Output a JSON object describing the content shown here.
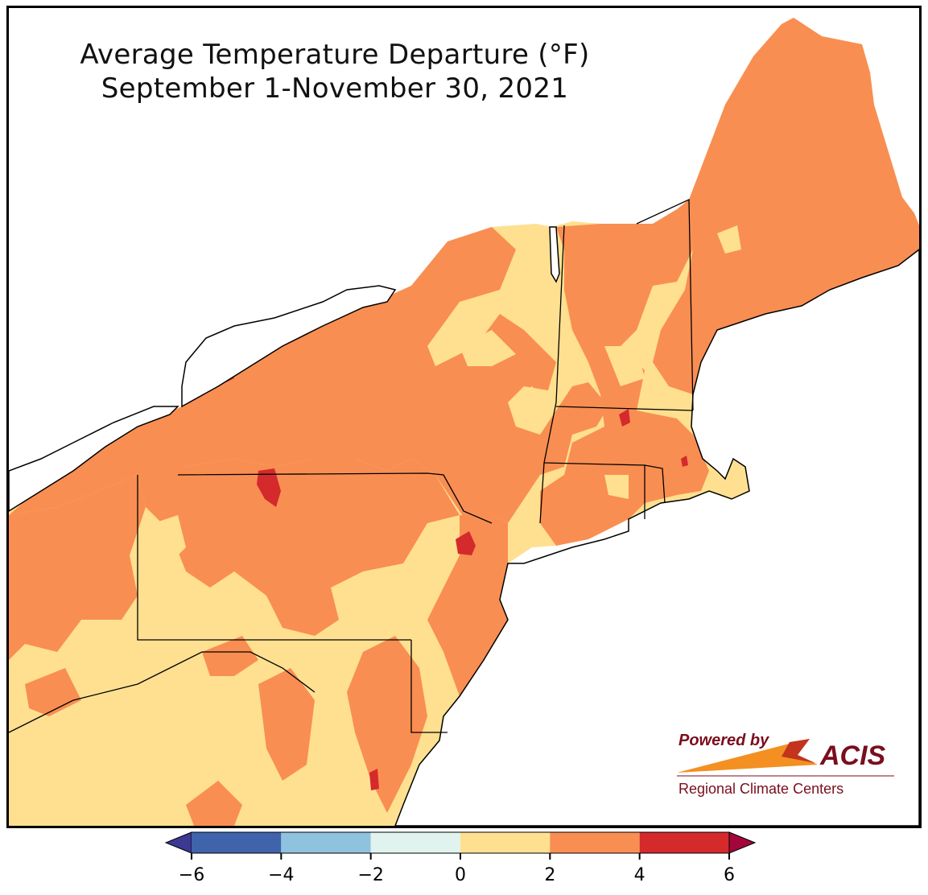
{
  "title": {
    "line1": "Average Temperature Departure (°F)",
    "line2": "September 1-November 30, 2021"
  },
  "logo": {
    "powered_by": "Powered by",
    "brand": "ACIS",
    "subtitle": "Regional Climate Centers"
  },
  "legend": {
    "bins": [
      {
        "from": -6,
        "to": -4,
        "color": "#4064ac"
      },
      {
        "from": -4,
        "to": -2,
        "color": "#8fc2de"
      },
      {
        "from": -2,
        "to": 0,
        "color": "#e1f3ee"
      },
      {
        "from": 0,
        "to": 2,
        "color": "#fee090"
      },
      {
        "from": 2,
        "to": 4,
        "color": "#f98e52"
      },
      {
        "from": 4,
        "to": 6,
        "color": "#d42a2b"
      }
    ],
    "under_color": "#3c3995",
    "over_color": "#a3063c",
    "ticks": [
      "−6",
      "−4",
      "−2",
      "0",
      "2",
      "4",
      "6"
    ]
  },
  "colors": {
    "lake": "#ffffff",
    "ocean": "#ffffff",
    "border": "#000000",
    "county_line": "#b8a58a"
  }
}
